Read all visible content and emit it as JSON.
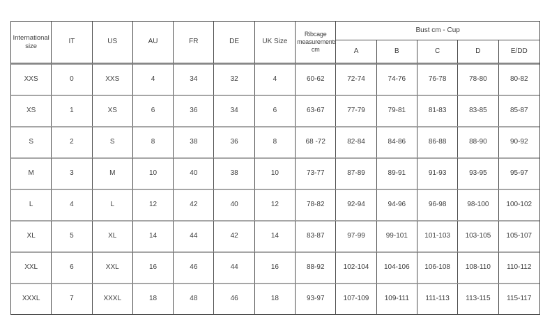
{
  "chart_data": {
    "type": "table",
    "title": "",
    "columns": [
      "International size",
      "IT",
      "US",
      "AU",
      "FR",
      "DE",
      "UK Size",
      "Ribcage measurements cm"
    ],
    "group_header": {
      "label": "Bust cm - Cup",
      "columns": [
        "A",
        "B",
        "C",
        "D",
        "E/DD"
      ]
    },
    "rows": [
      [
        "XXS",
        "0",
        "XXS",
        "4",
        "34",
        "32",
        "4",
        "60-62",
        "72-74",
        "74-76",
        "76-78",
        "78-80",
        "80-82"
      ],
      [
        "XS",
        "1",
        "XS",
        "6",
        "36",
        "34",
        "6",
        "63-67",
        "77-79",
        "79-81",
        "81-83",
        "83-85",
        "85-87"
      ],
      [
        "S",
        "2",
        "S",
        "8",
        "38",
        "36",
        "8",
        "68 -72",
        "82-84",
        "84-86",
        "86-88",
        "88-90",
        "90-92"
      ],
      [
        "M",
        "3",
        "M",
        "10",
        "40",
        "38",
        "10",
        "73-77",
        "87-89",
        "89-91",
        "91-93",
        "93-95",
        "95-97"
      ],
      [
        "L",
        "4",
        "L",
        "12",
        "42",
        "40",
        "12",
        "78-82",
        "92-94",
        "94-96",
        "96-98",
        "98-100",
        "100-102"
      ],
      [
        "XL",
        "5",
        "XL",
        "14",
        "44",
        "42",
        "14",
        "83-87",
        "97-99",
        "99-101",
        "101-103",
        "103-105",
        "105-107"
      ],
      [
        "XXL",
        "6",
        "XXL",
        "16",
        "46",
        "44",
        "16",
        "88-92",
        "102-104",
        "104-106",
        "106-108",
        "108-110",
        "110-112"
      ],
      [
        "XXXL",
        "7",
        "XXXL",
        "18",
        "48",
        "46",
        "18",
        "93-97",
        "107-109",
        "109-111",
        "111-113",
        "113-115",
        "115-117"
      ]
    ],
    "layout": {
      "grid": "full-borders",
      "legend_position": "none"
    },
    "colors": {
      "border_dark": "#4d4d4d",
      "border_gray": "#a6a6a6",
      "text": "#3d3d3d",
      "background": "#ffffff"
    }
  }
}
